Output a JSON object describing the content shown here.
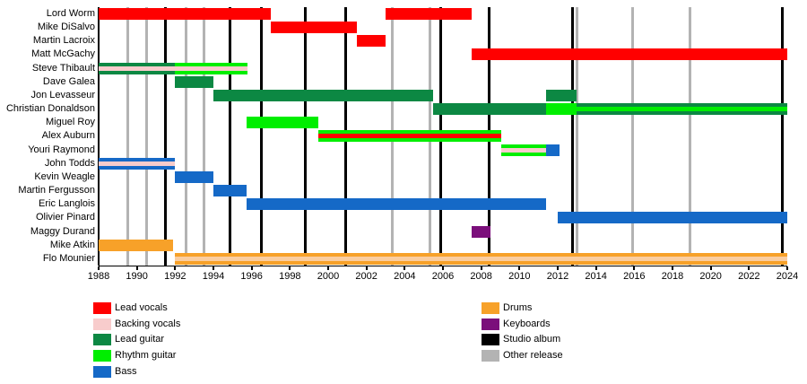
{
  "chart_data": {
    "type": "timeline",
    "description": "Band members timeline (gantt-style), roles by color, release lines vertical",
    "x_axis": {
      "start": 1988,
      "end": 2024,
      "tick_step": 2,
      "ticks": [
        1988,
        1990,
        1992,
        1994,
        1996,
        1998,
        2000,
        2002,
        2004,
        2006,
        2008,
        2010,
        2012,
        2014,
        2016,
        2018,
        2020,
        2022,
        2024
      ]
    },
    "roles": {
      "lead_vocals": "#FF0000",
      "backing_vocals": "#F8CCCC",
      "lead_guitar": "#0C8843",
      "rhythm_guitar": "#00EE00",
      "bass": "#1569C7",
      "drums": "#F7A129",
      "keyboards": "#7B0F7B",
      "studio_album": "#000000",
      "other_release": "#B3B3B3"
    },
    "members": [
      {
        "name": "Lord Worm",
        "segments": [
          {
            "from": 1988,
            "to": 1997,
            "role": "lead_vocals"
          },
          {
            "from": 2003,
            "to": 2007.5,
            "role": "lead_vocals"
          }
        ]
      },
      {
        "name": "Mike DiSalvo",
        "segments": [
          {
            "from": 1997,
            "to": 2001.5,
            "role": "lead_vocals"
          }
        ]
      },
      {
        "name": "Martin Lacroix",
        "segments": [
          {
            "from": 2001.5,
            "to": 2003,
            "role": "lead_vocals"
          }
        ]
      },
      {
        "name": "Matt McGachy",
        "segments": [
          {
            "from": 2007.5,
            "to": 2024,
            "role": "lead_vocals"
          }
        ]
      },
      {
        "name": "Steve Thibault",
        "segments": [
          {
            "from": 1988,
            "to": 1992,
            "role": "lead_guitar",
            "stripe": "backing_vocals"
          },
          {
            "from": 1992,
            "to": 1995.8,
            "role": "rhythm_guitar",
            "stripe": "backing_vocals"
          }
        ]
      },
      {
        "name": "Dave Galea",
        "segments": [
          {
            "from": 1992,
            "to": 1994,
            "role": "lead_guitar"
          }
        ]
      },
      {
        "name": "Jon Levasseur",
        "segments": [
          {
            "from": 1994,
            "to": 2005.5,
            "role": "lead_guitar"
          },
          {
            "from": 2011.4,
            "to": 2013,
            "role": "lead_guitar"
          }
        ]
      },
      {
        "name": "Christian Donaldson",
        "segments": [
          {
            "from": 2005.5,
            "to": 2011.4,
            "role": "lead_guitar"
          },
          {
            "from": 2011.4,
            "to": 2013,
            "role": "rhythm_guitar"
          },
          {
            "from": 2013,
            "to": 2024,
            "role": "lead_guitar",
            "stripe": "rhythm_guitar"
          }
        ]
      },
      {
        "name": "Miguel Roy",
        "segments": [
          {
            "from": 1995.75,
            "to": 1999.5,
            "role": "rhythm_guitar"
          }
        ]
      },
      {
        "name": "Alex Auburn",
        "segments": [
          {
            "from": 1999.5,
            "to": 2009.05,
            "role": "rhythm_guitar",
            "stripe": "lead_vocals"
          }
        ]
      },
      {
        "name": "Youri Raymond",
        "segments": [
          {
            "from": 2009.05,
            "to": 2011.4,
            "role": "rhythm_guitar",
            "stripe": "backing_vocals"
          },
          {
            "from": 2011.4,
            "to": 2012.1,
            "role": "bass"
          }
        ]
      },
      {
        "name": "John Todds",
        "segments": [
          {
            "from": 1988,
            "to": 1992,
            "role": "bass",
            "stripe": "backing_vocals"
          }
        ]
      },
      {
        "name": "Kevin Weagle",
        "segments": [
          {
            "from": 1992,
            "to": 1994,
            "role": "bass"
          }
        ]
      },
      {
        "name": "Martin Fergusson",
        "segments": [
          {
            "from": 1994,
            "to": 1995.75,
            "role": "bass"
          }
        ]
      },
      {
        "name": "Eric Langlois",
        "segments": [
          {
            "from": 1995.75,
            "to": 2011.4,
            "role": "bass"
          }
        ]
      },
      {
        "name": "Olivier Pinard",
        "segments": [
          {
            "from": 2012,
            "to": 2024,
            "role": "bass"
          }
        ]
      },
      {
        "name": "Maggy Durand",
        "segments": [
          {
            "from": 2007.5,
            "to": 2008.5,
            "role": "keyboards"
          }
        ]
      },
      {
        "name": "Mike Atkin",
        "segments": [
          {
            "from": 1988,
            "to": 1991.9,
            "role": "drums"
          }
        ]
      },
      {
        "name": "Flo Mounier",
        "segments": [
          {
            "from": 1992,
            "to": 2024,
            "role": "drums",
            "stripe": "backing_vocals",
            "stripe_color": "#FACDA0"
          }
        ]
      }
    ],
    "releases": {
      "studio_albums": [
        1991.5,
        1994.85,
        1996.5,
        1998.8,
        2000.9,
        2005.9,
        2008.4,
        2012.75,
        2023.75
      ],
      "other_releases": [
        1989.5,
        1990.5,
        1992.55,
        1993.5,
        2003.35,
        2005.3,
        2013.0,
        2015.9,
        2018.9
      ]
    },
    "legend": {
      "left": [
        {
          "label": "Lead vocals",
          "role": "lead_vocals"
        },
        {
          "label": "Backing vocals",
          "role": "backing_vocals"
        },
        {
          "label": "Lead guitar",
          "role": "lead_guitar"
        },
        {
          "label": "Rhythm guitar",
          "role": "rhythm_guitar"
        },
        {
          "label": "Bass",
          "role": "bass"
        }
      ],
      "right": [
        {
          "label": "Drums",
          "role": "drums"
        },
        {
          "label": "Keyboards",
          "role": "keyboards"
        },
        {
          "label": "Studio album",
          "role": "studio_album"
        },
        {
          "label": "Other release",
          "role": "other_release"
        }
      ]
    }
  }
}
